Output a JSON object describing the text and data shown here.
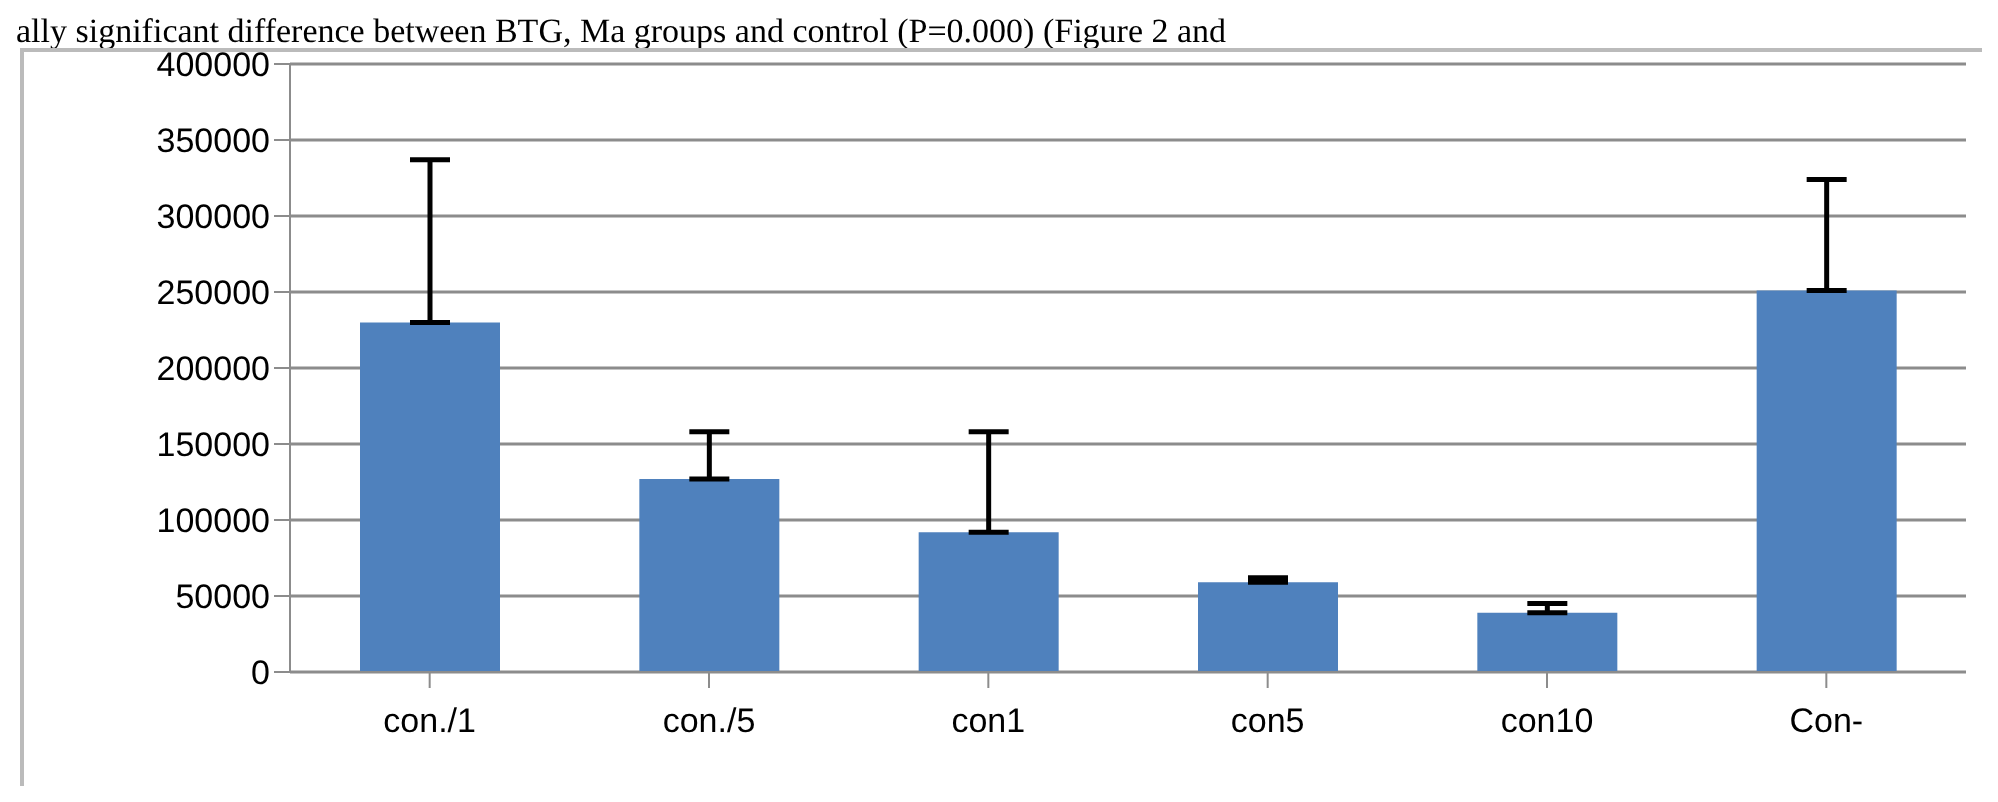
{
  "chart_data": {
    "type": "bar",
    "annotations": [
      "ally significant difference between BTG, Ma groups and control (P=0.000) (Figure 2 and"
    ],
    "categories": [
      "con./1",
      "con./5",
      "con1",
      "con5",
      "con10",
      "Con-"
    ],
    "values": [
      230000,
      127000,
      92000,
      59000,
      39000,
      251000
    ],
    "errors": [
      [
        230000,
        337000
      ],
      [
        127000,
        158000
      ],
      [
        92000,
        158000
      ],
      [
        59000,
        62000
      ],
      [
        39000,
        45000
      ],
      [
        251000,
        324000
      ]
    ],
    "color": "#4f81bd",
    "ylim": [
      0,
      400000
    ],
    "yticks": [
      0,
      50000,
      100000,
      150000,
      200000,
      250000,
      300000,
      350000,
      400000
    ],
    "grid": "y",
    "legend": false
  }
}
